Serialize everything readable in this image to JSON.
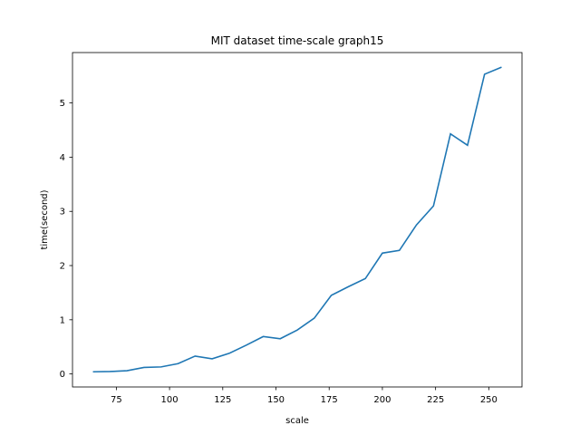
{
  "chart_data": {
    "type": "line",
    "title": "MIT dataset time-scale graph15",
    "xlabel": "scale",
    "ylabel": "time(second)",
    "xlim": [
      54.4,
      265.6
    ],
    "ylim": [
      -0.24,
      5.93
    ],
    "xticks": [
      75,
      100,
      125,
      150,
      175,
      200,
      225,
      250
    ],
    "yticks": [
      0,
      1,
      2,
      3,
      4,
      5
    ],
    "grid": false,
    "color": "#1f77b4",
    "series": [
      {
        "x": [
          64,
          72,
          80,
          88,
          96,
          104,
          112,
          120,
          128,
          136,
          144,
          152,
          160,
          168,
          176,
          184,
          192,
          200,
          208,
          216,
          224,
          232,
          240,
          248,
          256
        ],
        "values": [
          0.04,
          0.045,
          0.06,
          0.12,
          0.13,
          0.19,
          0.33,
          0.28,
          0.38,
          0.53,
          0.69,
          0.65,
          0.81,
          1.03,
          1.45,
          1.61,
          1.76,
          2.23,
          2.28,
          2.75,
          3.1,
          4.43,
          4.22,
          5.53,
          5.66
        ]
      }
    ]
  }
}
